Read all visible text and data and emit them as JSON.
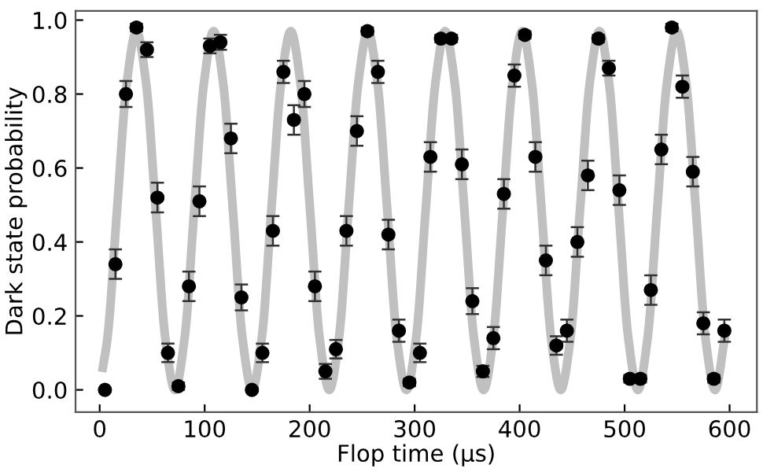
{
  "chart_data": {
    "type": "scatter",
    "xlabel": "Flop time (μs)",
    "ylabel": "Dark state probability",
    "xlim": [
      -23,
      626
    ],
    "ylim": [
      -0.06,
      1.025
    ],
    "xticks": [
      0,
      100,
      200,
      300,
      400,
      500,
      600
    ],
    "yticks": [
      {
        "value": 0,
        "label": "0.0"
      },
      {
        "value": 0.2,
        "label": "0.2"
      },
      {
        "value": 0.4,
        "label": "0.4"
      },
      {
        "value": 0.6,
        "label": "0.6"
      },
      {
        "value": 0.8,
        "label": "0.8"
      },
      {
        "value": 1.0,
        "label": "1.0"
      }
    ],
    "grid": false,
    "series": [
      {
        "type": "line",
        "color": "#c0c0c0",
        "line_style": "solid",
        "marker": "none",
        "x": [
          3,
          7.4,
          16.6,
          25.8,
          35.0,
          44.2,
          53.3,
          62.5,
          71.7,
          80.9,
          90.1,
          99.3,
          108.5,
          117.6,
          126.8,
          136.0,
          145.2,
          154.4,
          163.6,
          172.8,
          182.0,
          191.2,
          200.3,
          209.5,
          218.7,
          227.9,
          237.1,
          246.3,
          255.5,
          264.6,
          273.8,
          283.0,
          292.2,
          301.4,
          310.6,
          319.8,
          329.0,
          338.2,
          347.3,
          356.5,
          365.7,
          374.9,
          384.1,
          393.3,
          402.5,
          411.6,
          420.8,
          430.0,
          439.2,
          448.4,
          457.6,
          466.8,
          476.0,
          485.2,
          494.3,
          503.5,
          512.7,
          521.9,
          531.1,
          540.3,
          549.5,
          558.6,
          567.8,
          577.0,
          586.2,
          595.4
        ],
        "values": [
          0.06,
          0.14,
          0.49,
          0.83,
          0.97,
          0.83,
          0.49,
          0.14,
          0.0,
          0.14,
          0.49,
          0.83,
          0.97,
          0.83,
          0.49,
          0.14,
          0.0,
          0.14,
          0.49,
          0.83,
          0.97,
          0.83,
          0.49,
          0.14,
          0.0,
          0.14,
          0.49,
          0.83,
          0.97,
          0.83,
          0.49,
          0.14,
          0.0,
          0.14,
          0.49,
          0.83,
          0.97,
          0.83,
          0.49,
          0.14,
          0.0,
          0.14,
          0.49,
          0.83,
          0.97,
          0.83,
          0.49,
          0.14,
          0.0,
          0.14,
          0.49,
          0.83,
          0.97,
          0.83,
          0.49,
          0.14,
          0.0,
          0.14,
          0.49,
          0.83,
          0.97,
          0.83,
          0.49,
          0.14,
          0.0,
          0.14
        ]
      },
      {
        "color": "#000000",
        "marker": "circle",
        "x": [
          5,
          15,
          25,
          35,
          45,
          55,
          65,
          75,
          85,
          95,
          105,
          115,
          125,
          135,
          145,
          155,
          165,
          175,
          185,
          195,
          205,
          215,
          225,
          235,
          245,
          255,
          265,
          275,
          285,
          295,
          305,
          315,
          325,
          335,
          345,
          355,
          365,
          375,
          385,
          395,
          405,
          415,
          425,
          435,
          445,
          455,
          465,
          475,
          485,
          495,
          505,
          515,
          525,
          535,
          545,
          555,
          565,
          575,
          585,
          595
        ],
        "values": [
          0.0,
          0.34,
          0.8,
          0.98,
          0.92,
          0.52,
          0.1,
          0.01,
          0.28,
          0.51,
          0.93,
          0.94,
          0.68,
          0.25,
          0.0,
          0.1,
          0.43,
          0.86,
          0.73,
          0.8,
          0.28,
          0.05,
          0.11,
          0.43,
          0.7,
          0.97,
          0.86,
          0.42,
          0.16,
          0.02,
          0.1,
          0.63,
          0.95,
          0.95,
          0.61,
          0.24,
          0.05,
          0.14,
          0.53,
          0.85,
          0.96,
          0.63,
          0.35,
          0.12,
          0.16,
          0.4,
          0.58,
          0.95,
          0.87,
          0.54,
          0.03,
          0.03,
          0.27,
          0.65,
          0.98,
          0.82,
          0.59,
          0.18,
          0.03,
          0.16
        ],
        "errors": [
          0.005,
          0.04,
          0.035,
          0.01,
          0.02,
          0.04,
          0.025,
          0.01,
          0.04,
          0.04,
          0.02,
          0.02,
          0.04,
          0.035,
          0.005,
          0.025,
          0.04,
          0.03,
          0.04,
          0.035,
          0.04,
          0.02,
          0.025,
          0.04,
          0.04,
          0.01,
          0.03,
          0.04,
          0.03,
          0.01,
          0.025,
          0.04,
          0.01,
          0.01,
          0.04,
          0.035,
          0.015,
          0.03,
          0.04,
          0.03,
          0.01,
          0.04,
          0.04,
          0.025,
          0.03,
          0.04,
          0.04,
          0.01,
          0.02,
          0.04,
          0.01,
          0.01,
          0.04,
          0.04,
          0.01,
          0.03,
          0.04,
          0.03,
          0.01,
          0.03
        ]
      }
    ]
  }
}
